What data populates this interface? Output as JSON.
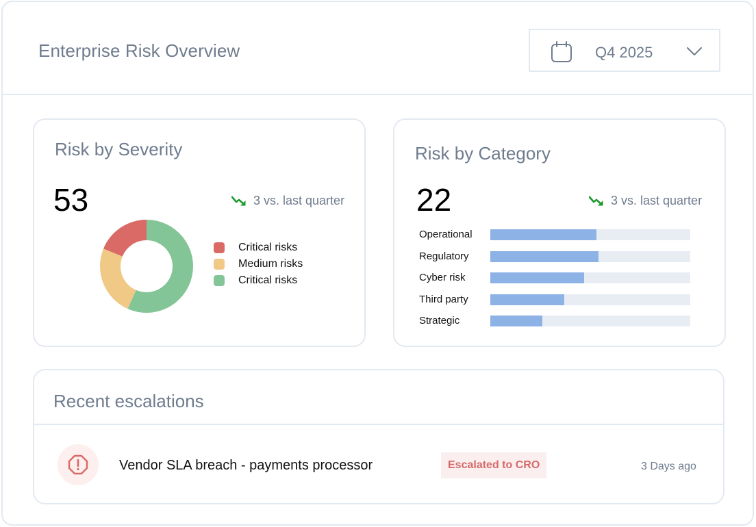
{
  "header": {
    "title": "Enterprise Risk Overview",
    "period": {
      "value": "Q4 2025",
      "icon": "calendar-icon"
    }
  },
  "severity_card": {
    "title": "Risk by Severity",
    "total": "53",
    "trend": {
      "text": "3 vs. last quarter",
      "direction": "down",
      "color": "#1a9a2a"
    },
    "legend": [
      {
        "label": "Critical risks",
        "color": "#d96a66"
      },
      {
        "label": "Medium risks",
        "color": "#f1c987"
      },
      {
        "label": "Critical risks",
        "color": "#84c597"
      }
    ],
    "chart_data": {
      "type": "pie",
      "donut": true,
      "slices": [
        {
          "label": "Critical risks",
          "value": 10,
          "color": "#d96a66"
        },
        {
          "label": "Medium risks",
          "value": 13,
          "color": "#f1c987"
        },
        {
          "label": "Critical risks",
          "value": 30,
          "color": "#84c597"
        }
      ]
    }
  },
  "category_card": {
    "title": "Risk by Category",
    "total": "22",
    "trend": {
      "text": "3 vs. last quarter",
      "direction": "down",
      "color": "#1a9a2a"
    },
    "chart_data": {
      "type": "bar",
      "orientation": "horizontal",
      "categories": [
        "Operational",
        "Regulatory",
        "Cyber risk",
        "Third party",
        "Strategic"
      ],
      "values": [
        0.53,
        0.54,
        0.47,
        0.37,
        0.26
      ],
      "xlim": [
        0,
        1
      ],
      "bar_color": "#8db3e6",
      "track_color": "#e8edf4"
    }
  },
  "escalations": {
    "title": "Recent escalations",
    "items": [
      {
        "icon": "alert-octagon-icon",
        "title": "Vendor SLA breach - payments processor",
        "badge": "Escalated to CRO",
        "time": "3 Days ago"
      }
    ]
  }
}
